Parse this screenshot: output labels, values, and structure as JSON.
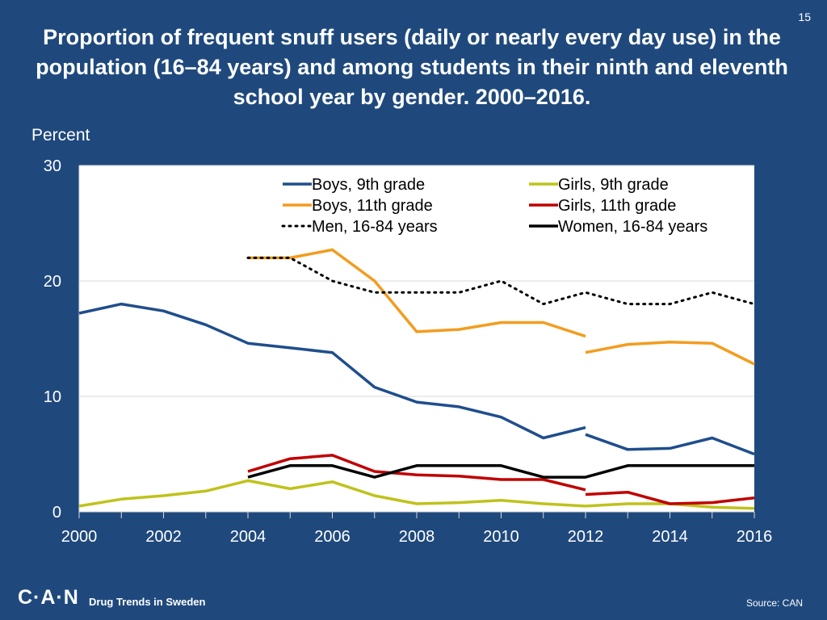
{
  "page_number": "15",
  "footer": {
    "logo": "C·A·N",
    "text": "Drug Trends in Sweden",
    "source": "Source: CAN"
  },
  "colors": {
    "background": "#1F497D",
    "plot_background": "#FFFFFF"
  },
  "chart_data": {
    "type": "line",
    "title": "Proportion of frequent snuff users (daily or nearly every day use) in the population (16–84 years) and among students in their ninth and eleventh school year by gender. 2000–2016.",
    "ylabel": "Percent",
    "xlabel": "",
    "xlim": [
      2000,
      2016
    ],
    "ylim": [
      0,
      30
    ],
    "x_ticks": [
      "2000",
      "2002",
      "2004",
      "2006",
      "2008",
      "2010",
      "2012",
      "2014",
      "2016"
    ],
    "y_ticks": [
      "0",
      "10",
      "20",
      "30"
    ],
    "grid": true,
    "legend_position": "top-right",
    "series": [
      {
        "name": "Boys, 9th grade",
        "color": "#1F4E8C",
        "style": "solid",
        "segments": [
          [
            [
              2000,
              17.2
            ],
            [
              2001,
              18.0
            ],
            [
              2002,
              17.4
            ],
            [
              2003,
              16.2
            ],
            [
              2004,
              14.6
            ],
            [
              2005,
              14.2
            ],
            [
              2006,
              13.8
            ],
            [
              2007,
              10.8
            ],
            [
              2008,
              9.5
            ],
            [
              2009,
              9.1
            ],
            [
              2010,
              8.2
            ],
            [
              2011,
              6.4
            ],
            [
              2012,
              7.3
            ]
          ],
          [
            [
              2012,
              6.7
            ],
            [
              2013,
              5.4
            ],
            [
              2014,
              5.5
            ],
            [
              2015,
              6.4
            ],
            [
              2016,
              5.0
            ]
          ]
        ]
      },
      {
        "name": "Boys, 11th grade",
        "color": "#F39C1F",
        "style": "solid",
        "segments": [
          [
            [
              2004,
              22.0
            ],
            [
              2005,
              22.0
            ],
            [
              2006,
              22.7
            ],
            [
              2007,
              20.0
            ],
            [
              2008,
              15.6
            ],
            [
              2009,
              15.8
            ],
            [
              2010,
              16.4
            ],
            [
              2011,
              16.4
            ],
            [
              2012,
              15.2
            ]
          ],
          [
            [
              2012,
              13.8
            ],
            [
              2013,
              14.5
            ],
            [
              2014,
              14.7
            ],
            [
              2015,
              14.6
            ],
            [
              2016,
              12.8
            ]
          ]
        ]
      },
      {
        "name": "Men, 16-84 years",
        "color": "#000000",
        "style": "dotted",
        "segments": [
          [
            [
              2004,
              22.0
            ],
            [
              2005,
              22.0
            ],
            [
              2006,
              20.0
            ],
            [
              2007,
              19.0
            ],
            [
              2008,
              19.0
            ],
            [
              2009,
              19.0
            ],
            [
              2010,
              20.0
            ],
            [
              2011,
              18.0
            ],
            [
              2012,
              19.0
            ],
            [
              2013,
              18.0
            ],
            [
              2014,
              18.0
            ],
            [
              2015,
              19.0
            ],
            [
              2016,
              18.0
            ]
          ]
        ]
      },
      {
        "name": "Girls, 9th grade",
        "color": "#BFC21B",
        "style": "solid",
        "segments": [
          [
            [
              2000,
              0.5
            ],
            [
              2001,
              1.1
            ],
            [
              2002,
              1.4
            ],
            [
              2003,
              1.8
            ],
            [
              2004,
              2.7
            ],
            [
              2005,
              2.0
            ],
            [
              2006,
              2.6
            ],
            [
              2007,
              1.4
            ],
            [
              2008,
              0.7
            ],
            [
              2009,
              0.8
            ],
            [
              2010,
              1.0
            ],
            [
              2011,
              0.7
            ],
            [
              2012,
              0.5
            ]
          ],
          [
            [
              2012,
              0.5
            ],
            [
              2013,
              0.7
            ],
            [
              2014,
              0.7
            ],
            [
              2015,
              0.4
            ],
            [
              2016,
              0.3
            ]
          ]
        ]
      },
      {
        "name": "Girls, 11th grade",
        "color": "#C00000",
        "style": "solid",
        "segments": [
          [
            [
              2004,
              3.5
            ],
            [
              2005,
              4.6
            ],
            [
              2006,
              4.9
            ],
            [
              2007,
              3.5
            ],
            [
              2008,
              3.2
            ],
            [
              2009,
              3.1
            ],
            [
              2010,
              2.8
            ],
            [
              2011,
              2.8
            ],
            [
              2012,
              1.9
            ]
          ],
          [
            [
              2012,
              1.5
            ],
            [
              2013,
              1.7
            ],
            [
              2014,
              0.7
            ],
            [
              2015,
              0.8
            ],
            [
              2016,
              1.2
            ]
          ]
        ]
      },
      {
        "name": "Women, 16-84 years",
        "color": "#000000",
        "style": "solid",
        "segments": [
          [
            [
              2004,
              3.0
            ],
            [
              2005,
              4.0
            ],
            [
              2006,
              4.0
            ],
            [
              2007,
              3.0
            ],
            [
              2008,
              4.0
            ],
            [
              2009,
              4.0
            ],
            [
              2010,
              4.0
            ],
            [
              2011,
              3.0
            ],
            [
              2012,
              3.0
            ],
            [
              2013,
              4.0
            ],
            [
              2014,
              4.0
            ],
            [
              2015,
              4.0
            ],
            [
              2016,
              4.0
            ]
          ]
        ]
      }
    ]
  }
}
